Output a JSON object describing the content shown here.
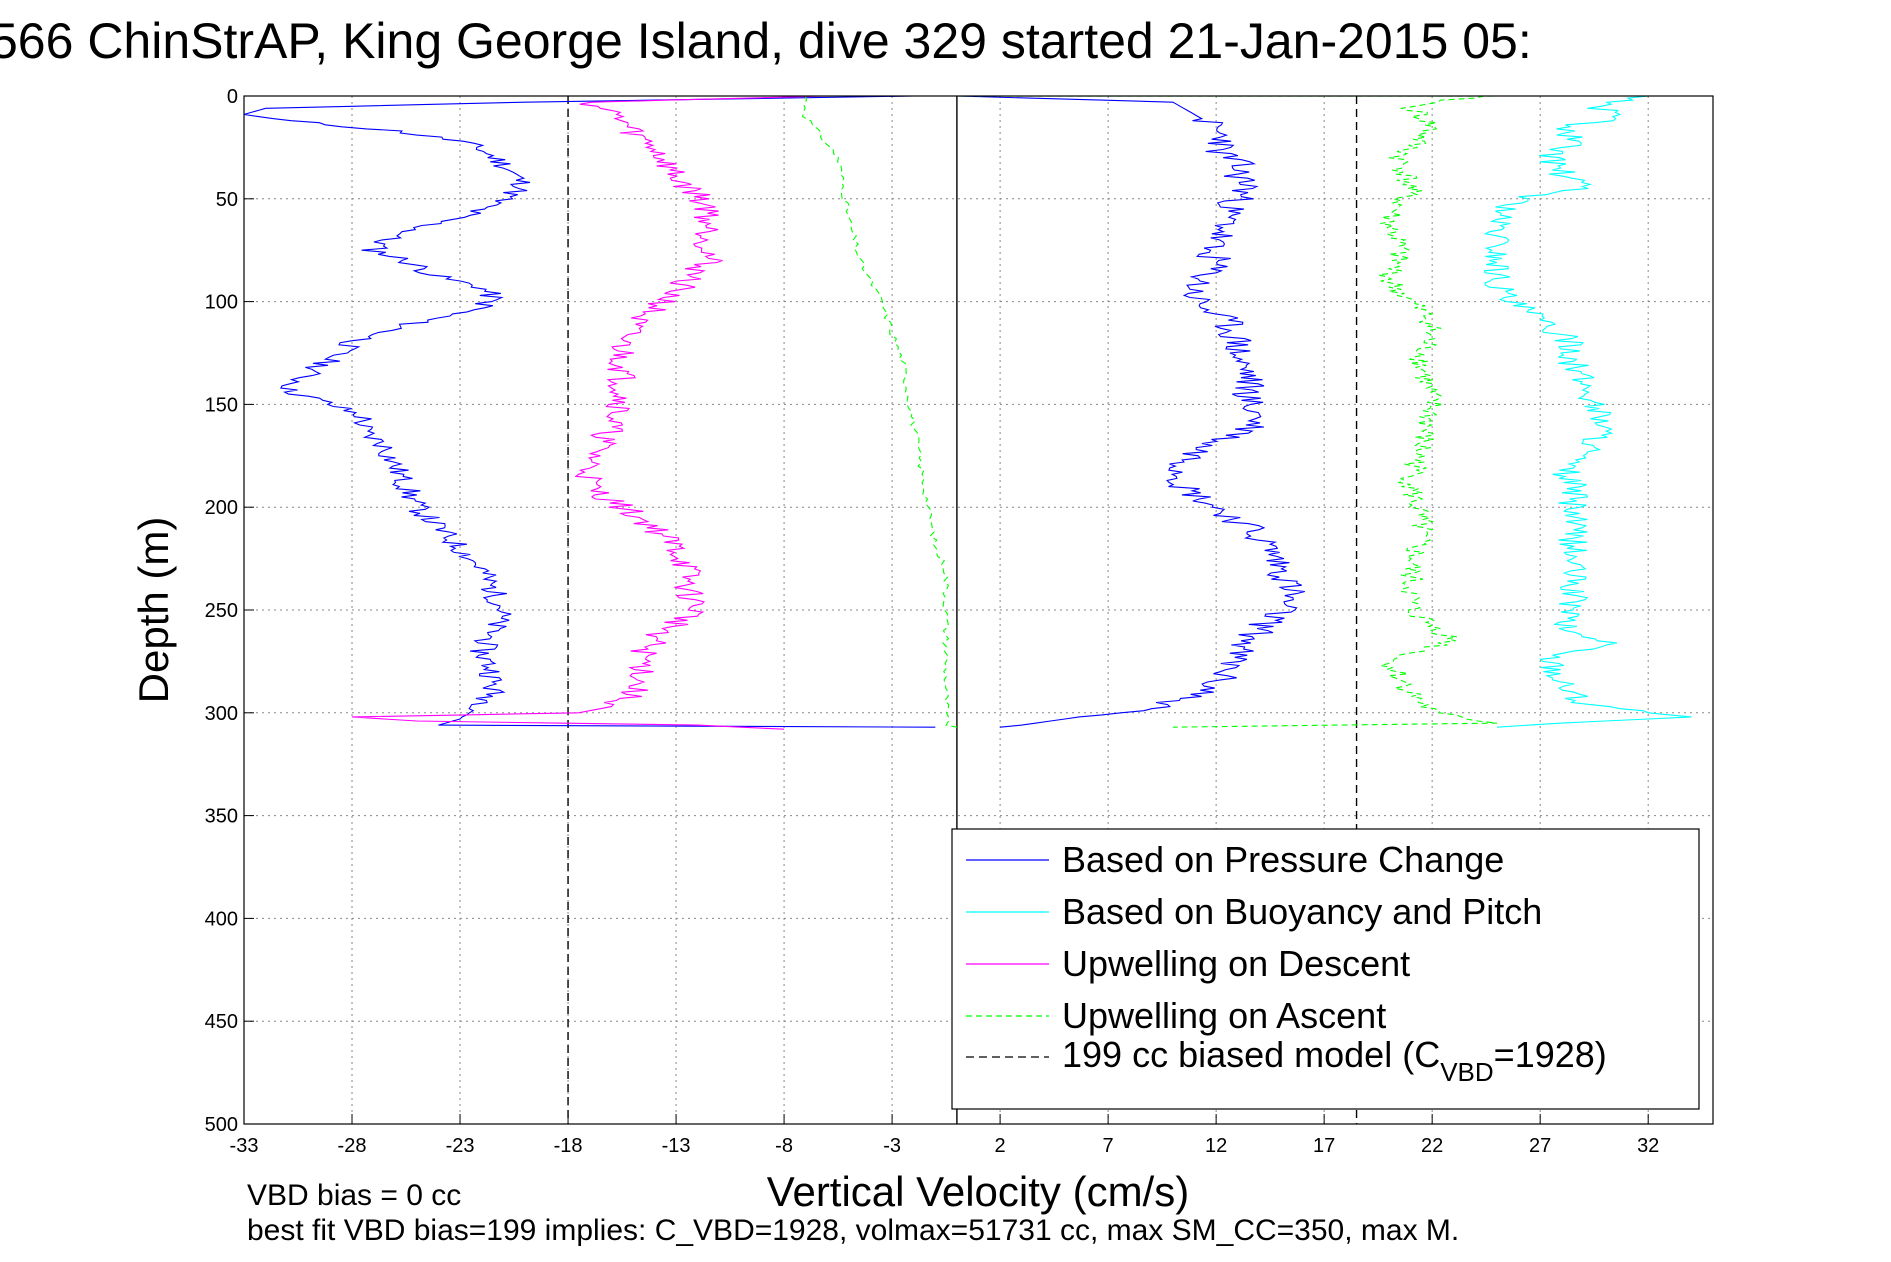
{
  "chart_data": {
    "type": "line",
    "title": "566 ChinStrAP, King George Island, dive 329 started 21-Jan-2015 05:",
    "xlabel": "Vertical Velocity (cm/s)",
    "ylabel": "Depth (m)",
    "xlim": [
      -33,
      35
    ],
    "ylim": [
      0,
      500
    ],
    "y_reversed": true,
    "grid": true,
    "xticks": [
      "-33",
      "-28",
      "-23",
      "-18",
      "-13",
      "-8",
      "-3",
      "2",
      "7",
      "12",
      "17",
      "22",
      "27",
      "32"
    ],
    "yticks": [
      "0",
      "50",
      "100",
      "150",
      "200",
      "250",
      "300",
      "350",
      "400",
      "450",
      "500"
    ],
    "legend_position": "bottom-right",
    "series": [
      {
        "name": "Based on Pressure Change",
        "color": "#0000ff",
        "style": "solid",
        "depth": [
          0,
          3,
          6,
          9,
          12,
          17,
          22,
          26,
          33,
          38,
          44,
          50,
          57,
          63,
          70,
          75,
          80,
          88,
          93,
          98,
          103,
          110,
          120,
          128,
          135,
          143,
          150,
          156,
          163,
          170,
          180,
          190,
          200,
          210,
          220,
          230,
          240,
          250,
          260,
          270,
          280,
          290,
          298,
          303,
          306,
          307
        ],
        "descent": [
          -2,
          -20,
          -32,
          -33,
          -31,
          -26,
          -23,
          -22,
          -21,
          -20.5,
          -20,
          -21,
          -22.5,
          -24.5,
          -26.5,
          -27,
          -25.5,
          -24,
          -22,
          -21.5,
          -22,
          -25,
          -28,
          -29,
          -30,
          -31,
          -29,
          -27.5,
          -27.5,
          -26.5,
          -26,
          -25.5,
          -25,
          -24,
          -23,
          -22,
          -21.5,
          -21,
          -21.5,
          -22,
          -21.5,
          -21.5,
          -22,
          -23,
          -24,
          -1
        ],
        "ascent_depth": [
          0,
          3,
          6,
          9,
          12,
          17,
          22,
          26,
          33,
          38,
          44,
          50,
          57,
          63,
          70,
          75,
          80,
          88,
          93,
          98,
          103,
          110,
          120,
          128,
          135,
          143,
          150,
          156,
          163,
          170,
          180,
          190,
          200,
          210,
          220,
          230,
          240,
          250,
          260,
          270,
          280,
          290,
          298,
          303,
          306,
          307
        ],
        "ascent": [
          0,
          10,
          10.5,
          11,
          11.5,
          12,
          12.5,
          12,
          13,
          13,
          13.5,
          13,
          12.5,
          12.5,
          12,
          11.5,
          12,
          11.5,
          11,
          11,
          11.5,
          12.5,
          13,
          13,
          13.5,
          13.5,
          13.5,
          14,
          13.5,
          11.5,
          10.5,
          10.5,
          12,
          13.5,
          14.5,
          15,
          15.5,
          15,
          14,
          13,
          12.5,
          11.5,
          9,
          5,
          3,
          2
        ]
      },
      {
        "name": "Based on Buoyancy and Pitch",
        "color": "#00ffff",
        "style": "solid",
        "depth": [
          0,
          5,
          10,
          15,
          22,
          30,
          38,
          45,
          50,
          60,
          70,
          80,
          90,
          100,
          105,
          110,
          120,
          130,
          140,
          150,
          160,
          170,
          180,
          190,
          200,
          210,
          220,
          230,
          240,
          250,
          260,
          266,
          272,
          285,
          295,
          300,
          302,
          305,
          307
        ],
        "values": [
          32,
          29.5,
          31,
          28,
          28.5,
          27.5,
          28,
          29,
          26,
          25,
          25,
          25,
          25,
          25.5,
          26.5,
          27,
          28.5,
          28.5,
          29,
          29.5,
          30,
          29.5,
          28,
          28.5,
          28.5,
          28.5,
          28.5,
          28.5,
          28.5,
          28.5,
          28,
          30.5,
          27.5,
          28,
          29,
          32,
          34,
          28,
          25
        ]
      },
      {
        "name": "Upwelling on Descent",
        "color": "#ff00ff",
        "style": "solid",
        "depth": [
          0,
          3,
          8,
          12,
          18,
          25,
          32,
          40,
          48,
          55,
          62,
          70,
          80,
          90,
          100,
          110,
          120,
          130,
          140,
          150,
          160,
          170,
          180,
          190,
          200,
          210,
          220,
          230,
          240,
          250,
          260,
          270,
          280,
          290,
          297,
          300,
          302,
          304,
          306,
          308
        ],
        "values": [
          -6,
          -17,
          -16,
          -15.5,
          -15,
          -14,
          -13.5,
          -13,
          -12,
          -11.5,
          -11.5,
          -11.5,
          -11.5,
          -12.5,
          -13.5,
          -15,
          -15.5,
          -15.5,
          -15.5,
          -15.5,
          -16,
          -16.5,
          -17,
          -17,
          -15.5,
          -14,
          -13,
          -12.5,
          -12.5,
          -12,
          -13.5,
          -14.5,
          -14.5,
          -15,
          -16,
          -17.5,
          -28,
          -25,
          -12,
          -8
        ]
      },
      {
        "name": "Upwelling on Ascent",
        "color": "#00ff00",
        "style": "dashed",
        "depth": [
          0,
          10,
          30,
          60,
          80,
          100,
          130,
          160,
          190,
          220,
          230,
          250,
          280,
          300,
          306,
          307
        ],
        "ascent_lane": [
          -7,
          -7,
          -5.5,
          -5,
          -4.5,
          -3.5,
          -2.5,
          -2,
          -1.5,
          -1,
          -0.5,
          -0.5,
          -0.5,
          -0.5,
          -0.5,
          0
        ],
        "right_lane_depth": [
          0,
          5,
          15,
          30,
          45,
          60,
          75,
          90,
          100,
          110,
          130,
          150,
          170,
          190,
          210,
          230,
          250,
          265,
          275,
          290,
          300,
          305,
          307
        ],
        "right_lane": [
          24,
          21,
          22,
          20.5,
          21,
          20,
          20.5,
          20,
          21,
          22,
          21.5,
          22,
          21.5,
          21,
          21.5,
          21,
          21,
          23,
          20,
          21,
          22,
          25,
          10
        ]
      }
    ],
    "reference_lines": [
      {
        "name": "199 cc biased model (C_VBD=1928)",
        "label_main": "199 cc biased model (C",
        "label_sub": "VBD",
        "label_tail": "=1928)",
        "color": "#000000",
        "style": "dashed",
        "x": [
          -18,
          18.5
        ]
      },
      {
        "name": "zero",
        "color": "#000000",
        "style": "solid",
        "x": [
          0
        ]
      }
    ]
  },
  "footer": {
    "line1": "VBD bias = 0 cc",
    "line2": "best fit VBD bias=199 implies: C_VBD=1928, volmax=51731 cc, max SM_CC=350, max M."
  }
}
